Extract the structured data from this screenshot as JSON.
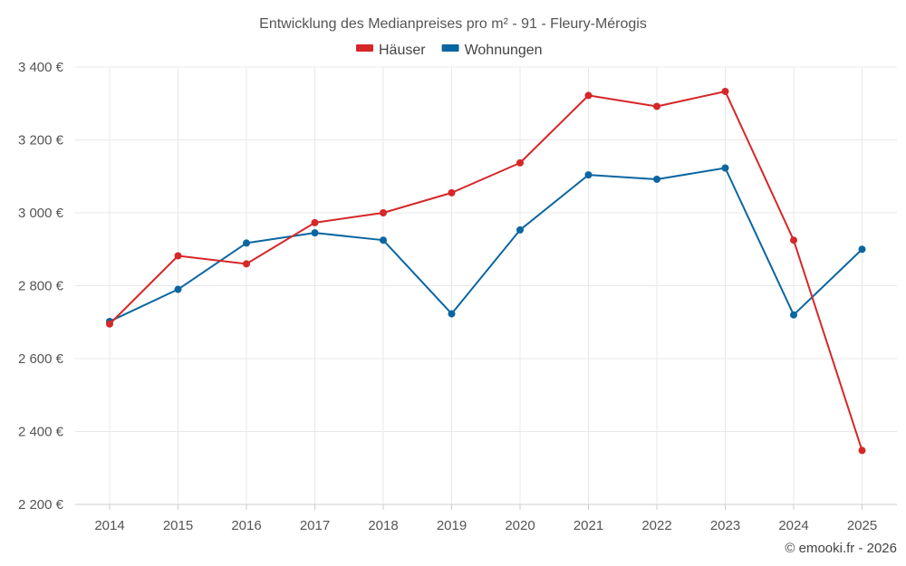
{
  "chart_data": {
    "type": "line",
    "title": "Entwicklung des Medianpreises pro m² - 91 - Fleury-Mérogis",
    "categories": [
      "2014",
      "2015",
      "2016",
      "2017",
      "2018",
      "2019",
      "2020",
      "2021",
      "2022",
      "2023",
      "2024",
      "2025"
    ],
    "series": [
      {
        "name": "Häuser",
        "color": "#d62728",
        "values": [
          2695,
          2882,
          2860,
          2973,
          3000,
          3055,
          3137,
          3322,
          3292,
          3333,
          2925,
          2348
        ]
      },
      {
        "name": "Wohnungen",
        "color": "#0a66a0",
        "values": [
          2702,
          2790,
          2917,
          2945,
          2925,
          2723,
          2953,
          3104,
          3092,
          3123,
          2720,
          2900
        ]
      }
    ],
    "ylim": [
      2200,
      3400
    ],
    "yticks": [
      2200,
      2400,
      2600,
      2800,
      3000,
      3200,
      3400
    ],
    "ytick_labels": [
      "2 200 €",
      "2 400 €",
      "2 600 €",
      "2 800 €",
      "3 000 €",
      "3 200 €",
      "3 400 €"
    ],
    "xlabel": "",
    "ylabel": "",
    "legend_position": "top-center",
    "grid": true
  },
  "credit": "© emooki.fr - 2026"
}
